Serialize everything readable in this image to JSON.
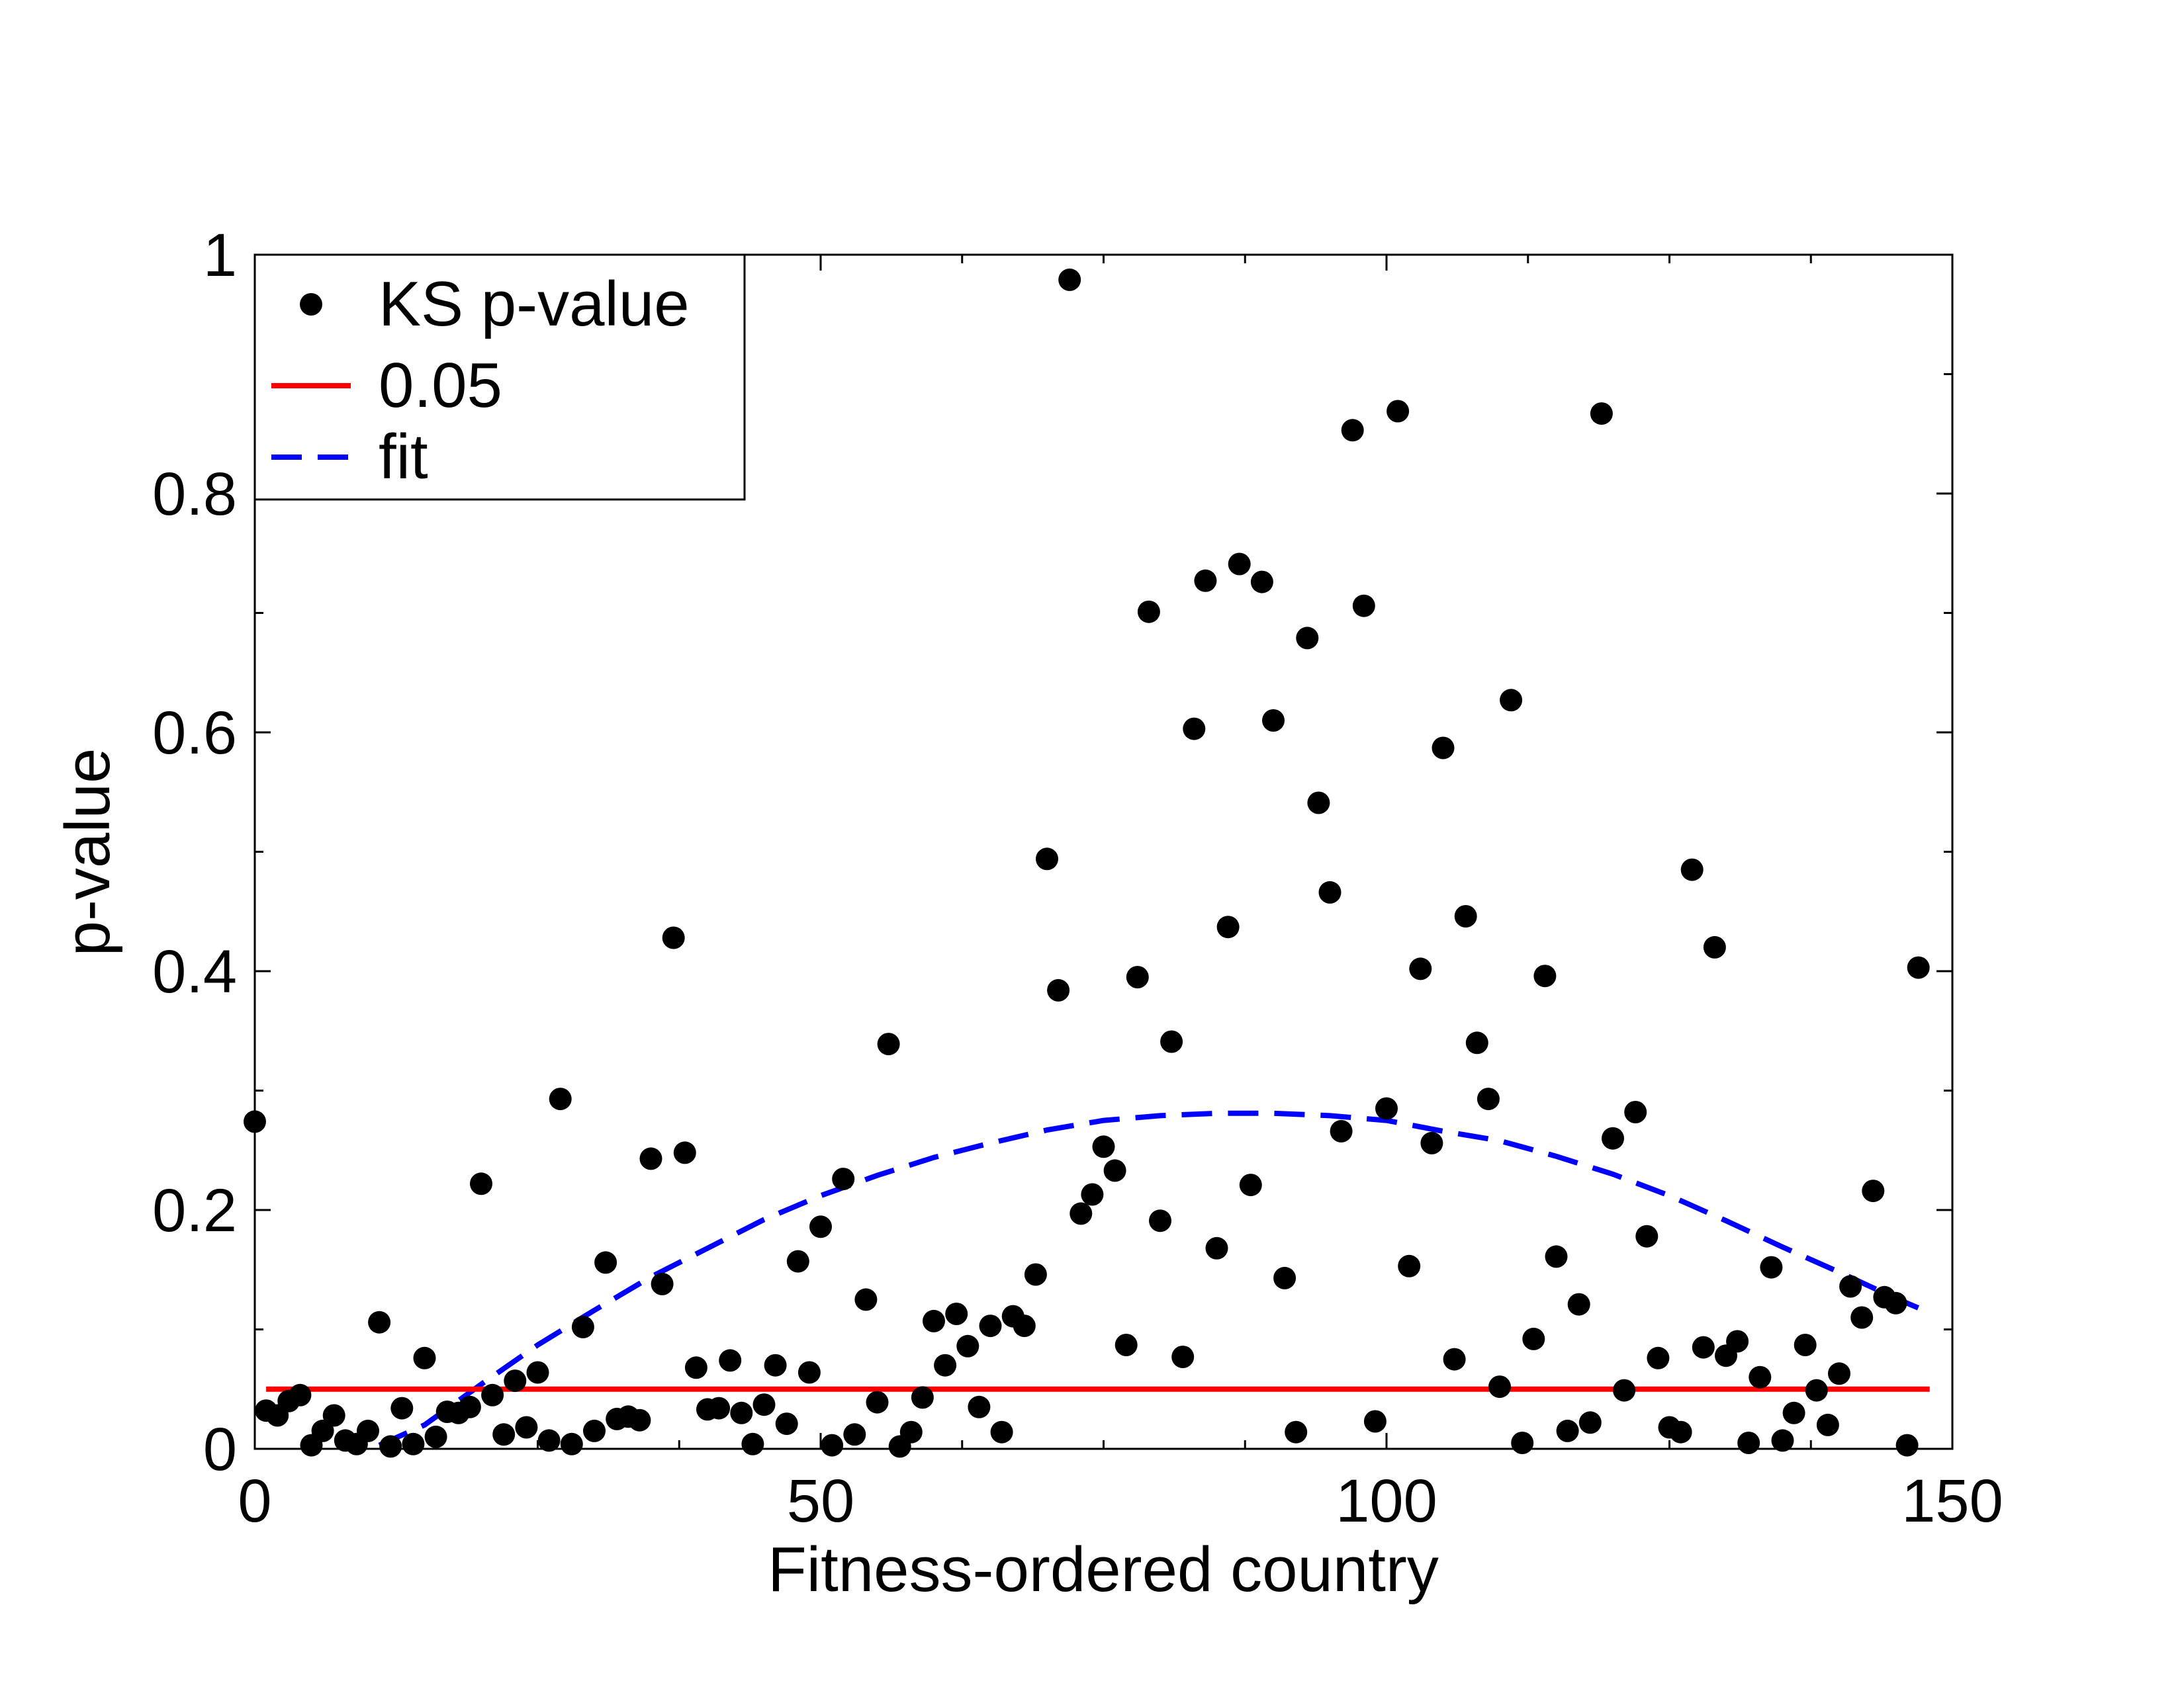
{
  "chart_data": {
    "type": "scatter",
    "xlabel": "Fitness-ordered country",
    "ylabel": "p-value",
    "xlim": [
      0,
      150
    ],
    "ylim": [
      0,
      1
    ],
    "x_ticks": [
      0,
      50,
      100,
      150
    ],
    "x_tick_labels": [
      "0",
      "50",
      "100",
      "150"
    ],
    "y_ticks": [
      0,
      0.2,
      0.4,
      0.6,
      0.8,
      1
    ],
    "y_tick_labels": [
      "0",
      "0.2",
      "0.4",
      "0.6",
      "0.8",
      "1"
    ],
    "grid": false,
    "legend_position": "top-left",
    "series": [
      {
        "name": "KS p-value",
        "kind": "scatter",
        "color": "#000000",
        "x": [
          0,
          1,
          2,
          3,
          4,
          5,
          6,
          7,
          8,
          9,
          10,
          11,
          12,
          13,
          14,
          15,
          16,
          17,
          18,
          19,
          20,
          21,
          22,
          23,
          24,
          25,
          26,
          27,
          28,
          29,
          30,
          31,
          32,
          33,
          34,
          35,
          36,
          37,
          38,
          39,
          40,
          41,
          42,
          43,
          44,
          45,
          46,
          47,
          48,
          49,
          50,
          51,
          52,
          53,
          54,
          55,
          56,
          57,
          58,
          59,
          60,
          61,
          62,
          63,
          64,
          65,
          66,
          67,
          68,
          69,
          70,
          71,
          72,
          73,
          74,
          75,
          76,
          77,
          78,
          79,
          80,
          81,
          82,
          83,
          84,
          85,
          86,
          87,
          88,
          89,
          90,
          91,
          92,
          93,
          94,
          95,
          96,
          97,
          98,
          99,
          100,
          101,
          102,
          103,
          104,
          105,
          106,
          107,
          108,
          109,
          110,
          111,
          112,
          113,
          114,
          115,
          116,
          117,
          118,
          119,
          120,
          121,
          122,
          123,
          124,
          125,
          126,
          127,
          128,
          129,
          130,
          131,
          132,
          133,
          134,
          135,
          136,
          137,
          138,
          139,
          140,
          141,
          142,
          143,
          144,
          145,
          146,
          147
        ],
        "y": [
          0.274,
          0.032,
          0.028,
          0.04,
          0.045,
          0.003,
          0.015,
          0.028,
          0.007,
          0.004,
          0.015,
          0.106,
          0.002,
          0.034,
          0.004,
          0.076,
          0.01,
          0.031,
          0.03,
          0.035,
          0.222,
          0.045,
          0.012,
          0.057,
          0.018,
          0.064,
          0.007,
          0.293,
          0.004,
          0.102,
          0.015,
          0.156,
          0.025,
          0.027,
          0.024,
          0.243,
          0.138,
          0.428,
          0.248,
          0.068,
          0.033,
          0.034,
          0.074,
          0.03,
          0.004,
          0.037,
          0.07,
          0.021,
          0.157,
          0.064,
          0.186,
          0.003,
          0.226,
          0.012,
          0.125,
          0.039,
          0.339,
          0.002,
          0.014,
          0.043,
          0.107,
          0.07,
          0.113,
          0.086,
          0.035,
          0.103,
          0.014,
          0.111,
          0.103,
          0.146,
          0.494,
          0.384,
          0.979,
          0.197,
          0.213,
          0.253,
          0.233,
          0.087,
          0.395,
          0.701,
          0.191,
          0.341,
          0.077,
          0.603,
          0.727,
          0.168,
          0.437,
          0.741,
          0.221,
          0.726,
          0.61,
          0.143,
          0.014,
          0.679,
          0.541,
          0.466,
          0.266,
          0.853,
          0.706,
          0.023,
          0.285,
          0.869,
          0.153,
          0.402,
          0.256,
          0.587,
          0.075,
          0.446,
          0.34,
          0.293,
          0.052,
          0.627,
          0.005,
          0.092,
          0.396,
          0.161,
          0.015,
          0.121,
          0.022,
          0.867,
          0.26,
          0.049,
          0.282,
          0.178,
          0.076,
          0.018,
          0.014,
          0.485,
          0.085,
          0.42,
          0.078,
          0.09,
          0.005,
          0.06,
          0.152,
          0.007,
          0.03,
          0.087,
          0.049,
          0.02,
          0.063,
          0.136,
          0.11,
          0.216,
          0.127,
          0.122,
          0.003,
          0.403
        ]
      },
      {
        "name": "0.05",
        "kind": "line",
        "color": "#ff0000",
        "style": "solid",
        "x": [
          1,
          148
        ],
        "y": [
          0.05,
          0.05
        ]
      },
      {
        "name": "fit",
        "kind": "line",
        "color": "#0000ff",
        "style": "dashed",
        "x": [
          11,
          15,
          20,
          25,
          30,
          35,
          40,
          45,
          50,
          55,
          60,
          65,
          70,
          75,
          80,
          85,
          90,
          95,
          100,
          105,
          110,
          115,
          120,
          125,
          130,
          135,
          140,
          145,
          147
        ],
        "y": [
          0.003,
          0.02,
          0.054,
          0.087,
          0.116,
          0.144,
          0.168,
          0.192,
          0.212,
          0.229,
          0.244,
          0.256,
          0.267,
          0.275,
          0.279,
          0.281,
          0.281,
          0.279,
          0.275,
          0.266,
          0.258,
          0.245,
          0.23,
          0.212,
          0.191,
          0.169,
          0.148,
          0.126,
          0.118
        ]
      }
    ]
  }
}
